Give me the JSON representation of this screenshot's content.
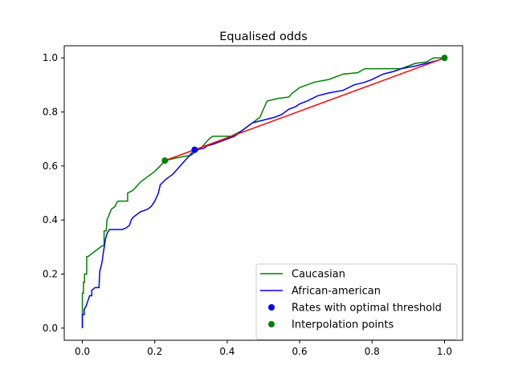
{
  "chart_data": {
    "type": "line",
    "title": "Equalised odds",
    "xlabel": "",
    "ylabel": "",
    "xlim": [
      -0.05,
      1.05
    ],
    "ylim": [
      -0.045,
      1.045
    ],
    "x_ticks": [
      "0.0",
      "0.2",
      "0.4",
      "0.6",
      "0.8",
      "1.0"
    ],
    "y_ticks": [
      "0.0",
      "0.2",
      "0.4",
      "0.6",
      "0.8",
      "1.0"
    ],
    "grid": false,
    "legend_position": "lower right",
    "series": [
      {
        "name": "Caucasian",
        "color": "#008000",
        "kind": "step",
        "points": [
          [
            0.0,
            0.0
          ],
          [
            0.0,
            0.13
          ],
          [
            0.003,
            0.13
          ],
          [
            0.003,
            0.17
          ],
          [
            0.006,
            0.17
          ],
          [
            0.006,
            0.2
          ],
          [
            0.012,
            0.2
          ],
          [
            0.012,
            0.265
          ],
          [
            0.016,
            0.265
          ],
          [
            0.055,
            0.305
          ],
          [
            0.06,
            0.305
          ],
          [
            0.06,
            0.36
          ],
          [
            0.066,
            0.36
          ],
          [
            0.068,
            0.4
          ],
          [
            0.074,
            0.42
          ],
          [
            0.08,
            0.44
          ],
          [
            0.09,
            0.45
          ],
          [
            0.095,
            0.465
          ],
          [
            0.1,
            0.47
          ],
          [
            0.125,
            0.47
          ],
          [
            0.125,
            0.5
          ],
          [
            0.14,
            0.51
          ],
          [
            0.16,
            0.54
          ],
          [
            0.18,
            0.56
          ],
          [
            0.2,
            0.58
          ],
          [
            0.215,
            0.6
          ],
          [
            0.228,
            0.62
          ],
          [
            0.26,
            0.63
          ],
          [
            0.3,
            0.64
          ],
          [
            0.33,
            0.67
          ],
          [
            0.35,
            0.7
          ],
          [
            0.36,
            0.71
          ],
          [
            0.41,
            0.71
          ],
          [
            0.44,
            0.73
          ],
          [
            0.47,
            0.76
          ],
          [
            0.49,
            0.78
          ],
          [
            0.5,
            0.81
          ],
          [
            0.51,
            0.84
          ],
          [
            0.54,
            0.85
          ],
          [
            0.57,
            0.855
          ],
          [
            0.58,
            0.87
          ],
          [
            0.6,
            0.89
          ],
          [
            0.62,
            0.9
          ],
          [
            0.64,
            0.91
          ],
          [
            0.68,
            0.92
          ],
          [
            0.72,
            0.94
          ],
          [
            0.76,
            0.945
          ],
          [
            0.78,
            0.96
          ],
          [
            0.88,
            0.96
          ],
          [
            0.9,
            0.97
          ],
          [
            0.92,
            0.98
          ],
          [
            0.95,
            0.985
          ],
          [
            0.97,
            1.0
          ],
          [
            1.0,
            1.0
          ]
        ]
      },
      {
        "name": "African-american",
        "color": "#0000ff",
        "kind": "step",
        "points": [
          [
            0.0,
            0.0
          ],
          [
            0.0,
            0.05
          ],
          [
            0.005,
            0.05
          ],
          [
            0.005,
            0.07
          ],
          [
            0.01,
            0.08
          ],
          [
            0.015,
            0.1
          ],
          [
            0.02,
            0.12
          ],
          [
            0.026,
            0.12
          ],
          [
            0.026,
            0.14
          ],
          [
            0.035,
            0.15
          ],
          [
            0.046,
            0.15
          ],
          [
            0.048,
            0.21
          ],
          [
            0.052,
            0.23
          ],
          [
            0.055,
            0.25
          ],
          [
            0.058,
            0.28
          ],
          [
            0.064,
            0.33
          ],
          [
            0.068,
            0.35
          ],
          [
            0.075,
            0.365
          ],
          [
            0.11,
            0.365
          ],
          [
            0.12,
            0.37
          ],
          [
            0.13,
            0.38
          ],
          [
            0.135,
            0.4
          ],
          [
            0.14,
            0.41
          ],
          [
            0.16,
            0.43
          ],
          [
            0.18,
            0.44
          ],
          [
            0.19,
            0.45
          ],
          [
            0.2,
            0.47
          ],
          [
            0.21,
            0.5
          ],
          [
            0.215,
            0.53
          ],
          [
            0.23,
            0.55
          ],
          [
            0.25,
            0.57
          ],
          [
            0.27,
            0.6
          ],
          [
            0.29,
            0.63
          ],
          [
            0.31,
            0.66
          ],
          [
            0.335,
            0.665
          ],
          [
            0.345,
            0.675
          ],
          [
            0.36,
            0.68
          ],
          [
            0.38,
            0.69
          ],
          [
            0.4,
            0.7
          ],
          [
            0.42,
            0.71
          ],
          [
            0.44,
            0.73
          ],
          [
            0.47,
            0.76
          ],
          [
            0.5,
            0.77
          ],
          [
            0.53,
            0.78
          ],
          [
            0.55,
            0.79
          ],
          [
            0.57,
            0.81
          ],
          [
            0.59,
            0.82
          ],
          [
            0.6,
            0.83
          ],
          [
            0.62,
            0.84
          ],
          [
            0.65,
            0.86
          ],
          [
            0.68,
            0.87
          ],
          [
            0.72,
            0.88
          ],
          [
            0.75,
            0.9
          ],
          [
            0.78,
            0.91
          ],
          [
            0.8,
            0.92
          ],
          [
            0.83,
            0.94
          ],
          [
            0.86,
            0.95
          ],
          [
            0.88,
            0.96
          ],
          [
            0.92,
            0.97
          ],
          [
            0.95,
            0.98
          ],
          [
            0.98,
            0.99
          ],
          [
            1.0,
            1.0
          ]
        ]
      },
      {
        "name": "",
        "color": "#ff0000",
        "kind": "line",
        "points": [
          [
            0.228,
            0.62
          ],
          [
            0.31,
            0.66
          ],
          [
            1.0,
            1.0
          ]
        ]
      },
      {
        "name": "Rates with optimal threshold",
        "color": "#0000ff",
        "kind": "marker",
        "points": [
          [
            0.31,
            0.66
          ]
        ]
      },
      {
        "name": "Interpolation points",
        "color": "#008000",
        "kind": "marker",
        "points": [
          [
            0.228,
            0.62
          ],
          [
            1.0,
            1.0
          ]
        ]
      }
    ]
  }
}
